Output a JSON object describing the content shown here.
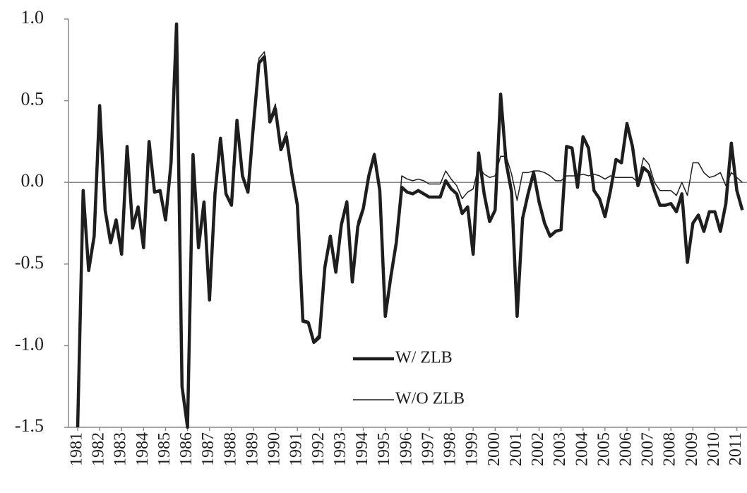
{
  "chart_data": {
    "type": "line",
    "categories": [
      "1981",
      null,
      null,
      null,
      "1982",
      null,
      null,
      null,
      "1983",
      null,
      null,
      null,
      "1984",
      null,
      null,
      null,
      "1985",
      null,
      null,
      null,
      "1986",
      null,
      null,
      null,
      "1987",
      null,
      null,
      null,
      "1988",
      null,
      null,
      null,
      "1989",
      null,
      null,
      null,
      "1990",
      null,
      null,
      null,
      "1991",
      null,
      null,
      null,
      "1992",
      null,
      null,
      null,
      "1993",
      null,
      null,
      null,
      "1994",
      null,
      null,
      null,
      "1995",
      null,
      null,
      null,
      "1996",
      null,
      null,
      null,
      "1997",
      null,
      null,
      null,
      "1998",
      null,
      null,
      null,
      "1999",
      null,
      null,
      null,
      "2000",
      null,
      null,
      null,
      "2001",
      null,
      null,
      null,
      "2002",
      null,
      null,
      null,
      "2003",
      null,
      null,
      null,
      "2004",
      null,
      null,
      null,
      "2005",
      null,
      null,
      null,
      "2006",
      null,
      null,
      null,
      "2007",
      null,
      null,
      null,
      "2008",
      null,
      null,
      null,
      "2009",
      null,
      null,
      null,
      "2010",
      null,
      null,
      null,
      "2011",
      null
    ],
    "series": [
      {
        "name": "W/ ZLB",
        "color": "#1e1e1e",
        "values": [
          -1.5,
          -0.05,
          -0.54,
          -0.33,
          0.47,
          -0.17,
          -0.37,
          -0.23,
          -0.44,
          0.22,
          -0.28,
          -0.15,
          -0.4,
          0.25,
          -0.06,
          -0.05,
          -0.23,
          0.12,
          0.97,
          -1.25,
          -1.5,
          0.17,
          -0.4,
          -0.12,
          -0.72,
          -0.07,
          0.27,
          -0.07,
          -0.14,
          0.38,
          0.04,
          -0.06,
          0.35,
          0.73,
          0.77,
          0.37,
          0.45,
          0.2,
          0.28,
          0.05,
          -0.14,
          -0.85,
          -0.86,
          -0.98,
          -0.95,
          -0.52,
          -0.33,
          -0.55,
          -0.26,
          -0.12,
          -0.61,
          -0.27,
          -0.16,
          0.04,
          0.17,
          -0.05,
          -0.82,
          -0.58,
          -0.37,
          -0.03,
          -0.06,
          -0.07,
          -0.05,
          -0.07,
          -0.09,
          -0.09,
          -0.09,
          0.01,
          -0.04,
          -0.07,
          -0.19,
          -0.15,
          -0.44,
          0.18,
          -0.07,
          -0.24,
          -0.17,
          0.54,
          0.12,
          -0.06,
          -0.82,
          -0.22,
          -0.07,
          0.06,
          -0.12,
          -0.25,
          -0.33,
          -0.3,
          -0.29,
          0.22,
          0.21,
          -0.03,
          0.28,
          0.21,
          -0.05,
          -0.1,
          -0.21,
          -0.05,
          0.14,
          0.12,
          0.36,
          0.22,
          -0.02,
          0.09,
          0.06,
          -0.05,
          -0.14,
          -0.14,
          -0.13,
          -0.18,
          -0.07,
          -0.49,
          -0.25,
          -0.2,
          -0.3,
          -0.18,
          -0.18,
          -0.3,
          -0.13,
          0.24,
          -0.05,
          -0.17
        ]
      },
      {
        "name": "W/O ZLB",
        "color": "#1e1e1e",
        "values": [
          -1.5,
          -0.05,
          -0.54,
          -0.33,
          0.47,
          -0.17,
          -0.37,
          -0.23,
          -0.44,
          0.22,
          -0.28,
          -0.15,
          -0.4,
          0.25,
          -0.06,
          -0.05,
          -0.23,
          0.12,
          0.97,
          -1.25,
          -1.5,
          0.17,
          -0.4,
          -0.12,
          -0.72,
          -0.07,
          0.27,
          -0.07,
          -0.14,
          0.38,
          0.04,
          -0.06,
          0.37,
          0.76,
          0.8,
          0.39,
          0.48,
          0.22,
          0.31,
          0.06,
          -0.13,
          -0.84,
          -0.85,
          -0.97,
          -0.93,
          -0.52,
          -0.33,
          -0.54,
          -0.24,
          -0.11,
          -0.59,
          -0.24,
          -0.14,
          0.05,
          0.18,
          -0.04,
          -0.81,
          -0.57,
          -0.36,
          0.04,
          0.02,
          0.01,
          0.02,
          0.01,
          -0.01,
          -0.01,
          -0.01,
          0.07,
          0.02,
          -0.02,
          -0.1,
          -0.06,
          -0.04,
          0.1,
          0.05,
          0.03,
          0.04,
          0.16,
          0.16,
          0.05,
          -0.11,
          0.06,
          0.06,
          0.07,
          0.07,
          0.06,
          0.04,
          0.01,
          0.01,
          0.04,
          0.04,
          0.04,
          0.05,
          0.04,
          0.05,
          0.04,
          0.02,
          0.04,
          0.03,
          0.03,
          0.03,
          0.03,
          0.0,
          0.15,
          0.11,
          0.0,
          -0.05,
          -0.05,
          -0.05,
          -0.08,
          0.0,
          -0.08,
          0.12,
          0.12,
          0.06,
          0.03,
          0.04,
          0.06,
          -0.02,
          0.06,
          0.03,
          0.0
        ]
      }
    ],
    "ylim": [
      -1.5,
      1.0
    ],
    "yticks": [
      -1.5,
      {
        "value": -1,
        "label": "-1.0"
      },
      -0.5,
      {
        "value": 0,
        "label": "0.0"
      },
      0.5,
      {
        "value": 1,
        "label": "1.0"
      }
    ],
    "legend": "lower-center"
  }
}
